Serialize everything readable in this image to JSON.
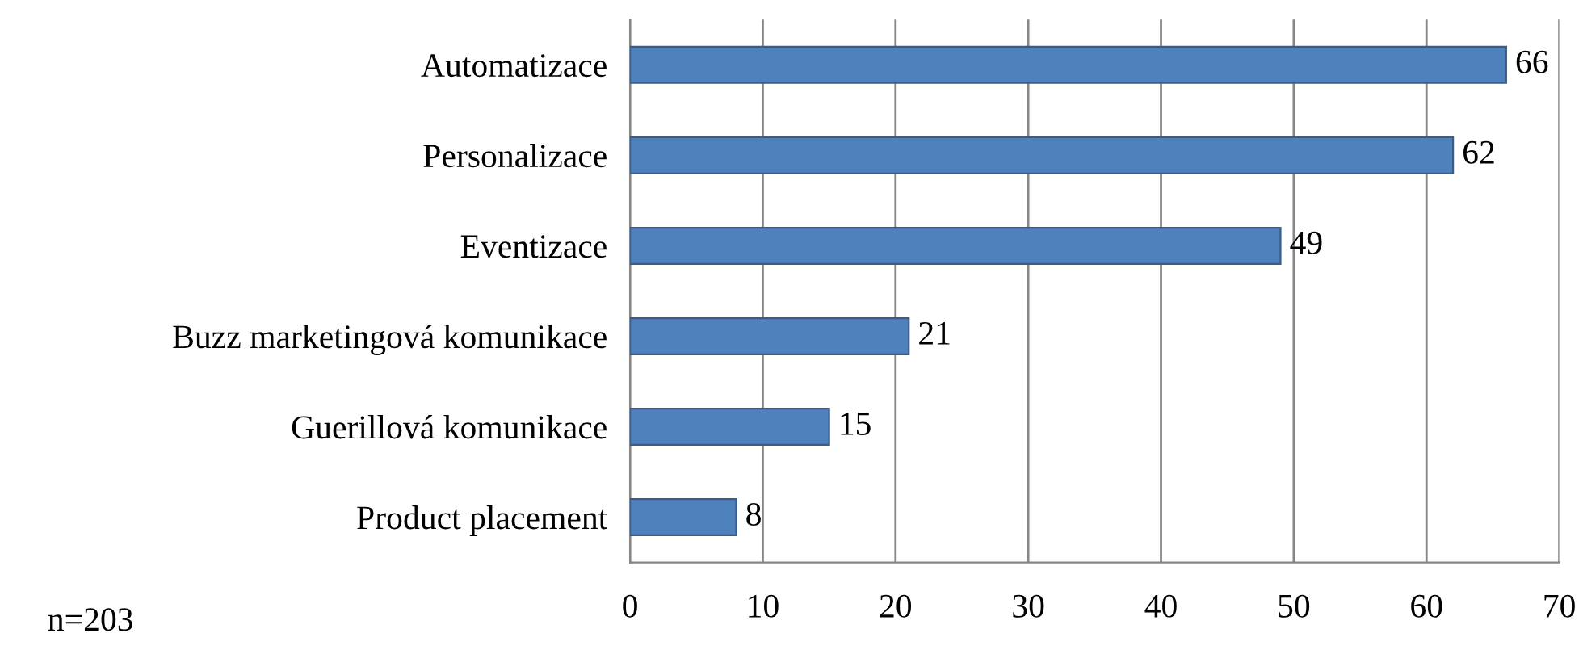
{
  "chart_data": {
    "type": "bar",
    "orientation": "horizontal",
    "categories": [
      "Automatizace",
      "Personalizace",
      "Eventizace",
      "Buzz marketingová komunikace",
      "Guerillová komunikace",
      "Product placement"
    ],
    "values": [
      66,
      62,
      49,
      21,
      15,
      8
    ],
    "color": "#4f81bd",
    "xlim": [
      0,
      70
    ],
    "xticks": [
      0,
      10,
      20,
      30,
      40,
      50,
      60,
      70
    ],
    "grid": "x",
    "data_labels": true,
    "annotations": [
      "n=203"
    ]
  }
}
